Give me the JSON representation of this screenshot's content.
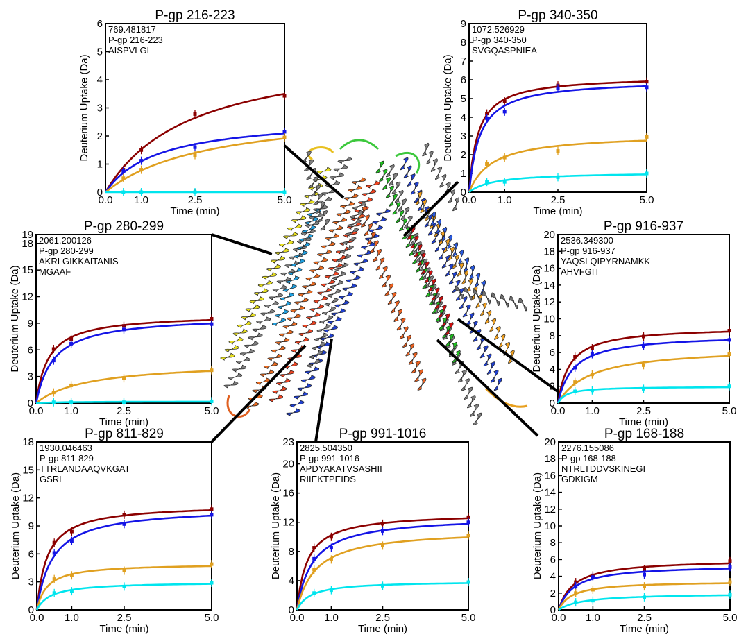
{
  "colors": {
    "red": "#8b0000",
    "blue": "#1414e6",
    "orange": "#e0a020",
    "cyan": "#00e5ee"
  },
  "structure_icon": "protein-ribbon-structure",
  "chart_data": [
    {
      "id": "pgp-216-223",
      "type": "line",
      "title": "P-gp 216-223",
      "annotation": [
        "769.481817",
        "P-gp 216-223",
        "AISPVLGL"
      ],
      "xlabel": "Time (min)",
      "ylabel": "Deuterium Uptake (Da)",
      "xlim": [
        0,
        5
      ],
      "ylim": [
        0,
        6
      ],
      "xticks": [
        "0.0",
        "1.0",
        "2.5",
        "5.0"
      ],
      "yticks": [
        0,
        1,
        2,
        3,
        4,
        5,
        6
      ],
      "x": [
        0.5,
        1.0,
        2.5,
        5.0
      ],
      "series": [
        {
          "color": "red",
          "values": [
            0.8,
            1.5,
            2.78,
            3.43
          ]
        },
        {
          "color": "blue",
          "values": [
            0.75,
            1.12,
            1.6,
            2.15
          ]
        },
        {
          "color": "orange",
          "values": [
            0.5,
            0.8,
            1.32,
            1.95
          ]
        },
        {
          "color": "cyan",
          "values": [
            0.0,
            0.0,
            0.0,
            0.0
          ]
        }
      ]
    },
    {
      "id": "pgp-340-350",
      "type": "line",
      "title": "P-gp 340-350",
      "annotation": [
        "1072.526929",
        "P-gp 340-350",
        "SVGQASPNIEA"
      ],
      "xlabel": "Time (min)",
      "ylabel": "Deuterium Uptake (Da)",
      "xlim": [
        0,
        5
      ],
      "ylim": [
        0,
        9
      ],
      "xticks": [
        "0.0",
        "1.0",
        "2.5",
        "5.0"
      ],
      "yticks": [
        0,
        1,
        2,
        3,
        4,
        5,
        6,
        7,
        8,
        9
      ],
      "x": [
        0.5,
        1.0,
        2.5,
        5.0
      ],
      "series": [
        {
          "color": "red",
          "values": [
            4.2,
            4.85,
            5.7,
            5.9
          ]
        },
        {
          "color": "blue",
          "values": [
            3.95,
            4.3,
            5.55,
            5.6
          ]
        },
        {
          "color": "orange",
          "values": [
            1.5,
            1.85,
            2.2,
            2.95
          ]
        },
        {
          "color": "cyan",
          "values": [
            0.55,
            0.55,
            0.8,
            1.0
          ]
        }
      ]
    },
    {
      "id": "pgp-280-299",
      "type": "line",
      "title": "P-gp 280-299",
      "annotation": [
        "2061.200126",
        "P-gp 280-299",
        "AKRLGIKKAITANIS",
        "MGAAF"
      ],
      "xlabel": "Time (min)",
      "ylabel": "Deuterium Uptake (Da)",
      "xlim": [
        0,
        5
      ],
      "ylim": [
        0,
        19
      ],
      "xticks": [
        "0.0",
        "1.0",
        "2.5",
        "5.0"
      ],
      "yticks": [
        0,
        3,
        6,
        9,
        12,
        15,
        18,
        19
      ],
      "x": [
        0.5,
        1.0,
        2.5,
        5.0
      ],
      "series": [
        {
          "color": "red",
          "values": [
            6.1,
            7.2,
            8.7,
            9.5
          ]
        },
        {
          "color": "blue",
          "values": [
            4.8,
            6.7,
            8.3,
            8.9
          ]
        },
        {
          "color": "orange",
          "values": [
            1.2,
            2.0,
            2.8,
            3.7
          ]
        },
        {
          "color": "cyan",
          "values": [
            0.1,
            0.1,
            0.1,
            0.2
          ]
        }
      ]
    },
    {
      "id": "pgp-916-937",
      "type": "line",
      "title": "P-gp 916-937",
      "annotation": [
        "2536.349300",
        "P-gp 916-937",
        "YAQSLQIPYRNAMKK",
        "AHVFGIT"
      ],
      "xlabel": "Time (min)",
      "ylabel": "Deuterium Uptake (Da)",
      "xlim": [
        0,
        5
      ],
      "ylim": [
        0,
        20
      ],
      "xticks": [
        "0.0",
        "1.0",
        "2.5",
        "5.0"
      ],
      "yticks": [
        0,
        2,
        4,
        6,
        8,
        10,
        12,
        14,
        16,
        18,
        20
      ],
      "x": [
        0.5,
        1.0,
        2.5,
        5.0
      ],
      "series": [
        {
          "color": "red",
          "values": [
            5.5,
            6.5,
            7.9,
            8.6
          ]
        },
        {
          "color": "blue",
          "values": [
            4.2,
            5.8,
            6.8,
            7.5
          ]
        },
        {
          "color": "orange",
          "values": [
            2.5,
            3.4,
            4.5,
            5.8
          ]
        },
        {
          "color": "cyan",
          "values": [
            1.4,
            1.5,
            1.7,
            2.0
          ]
        }
      ]
    },
    {
      "id": "pgp-811-829",
      "type": "line",
      "title": "P-gp 811-829",
      "annotation": [
        "1930.046463",
        "P-gp 811-829",
        "TTRLANDAAQVKGAT",
        "GSRL"
      ],
      "xlabel": "Time (min)",
      "ylabel": "Deuterium Uptake (Da)",
      "xlim": [
        0,
        5
      ],
      "ylim": [
        0,
        18
      ],
      "xticks": [
        "0.0",
        "1.0",
        "2.5",
        "5.0"
      ],
      "yticks": [
        0,
        3,
        6,
        9,
        12,
        15,
        18
      ],
      "x": [
        0.5,
        1.0,
        2.5,
        5.0
      ],
      "series": [
        {
          "color": "red",
          "values": [
            7.2,
            8.4,
            10.2,
            10.8
          ]
        },
        {
          "color": "blue",
          "values": [
            6.1,
            7.4,
            9.2,
            10.2
          ]
        },
        {
          "color": "orange",
          "values": [
            3.3,
            3.7,
            4.2,
            4.9
          ]
        },
        {
          "color": "cyan",
          "values": [
            1.8,
            2.0,
            2.5,
            2.9
          ]
        }
      ]
    },
    {
      "id": "pgp-991-1016",
      "type": "line",
      "title": "P-gp 991-1016",
      "annotation": [
        "2825.504350",
        "P-gp 991-1016",
        "APDYAKATVSASHII",
        "RIIEKTPEIDS"
      ],
      "xlabel": "Time (min)",
      "ylabel": "Deuterium Uptake (Da)",
      "xlim": [
        0,
        5
      ],
      "ylim": [
        0,
        23
      ],
      "xticks": [
        "0.0",
        "1.0",
        "2.5",
        "5.0"
      ],
      "yticks": [
        0,
        4,
        8,
        12,
        16,
        20,
        23
      ],
      "x": [
        0.5,
        1.0,
        2.5,
        5.0
      ],
      "series": [
        {
          "color": "red",
          "values": [
            8.5,
            10.0,
            11.8,
            12.7
          ]
        },
        {
          "color": "blue",
          "values": [
            7.0,
            8.5,
            10.8,
            12.0
          ]
        },
        {
          "color": "orange",
          "values": [
            5.5,
            6.9,
            8.8,
            10.2
          ]
        },
        {
          "color": "cyan",
          "values": [
            2.3,
            2.7,
            3.3,
            3.8
          ]
        }
      ]
    },
    {
      "id": "pgp-168-188",
      "type": "line",
      "title": "P-gp 168-188",
      "annotation": [
        "2276.155086",
        "P-gp 168-188",
        "NTRLTDDVSKINEGI",
        "GDKIGM"
      ],
      "xlabel": "Time (min)",
      "ylabel": "Deuterium Uptake (Da)",
      "xlim": [
        0,
        5
      ],
      "ylim": [
        0,
        20
      ],
      "xticks": [
        "0.0",
        "1.0",
        "2.5",
        "5.0"
      ],
      "yticks": [
        0,
        2,
        4,
        6,
        8,
        10,
        12,
        14,
        16,
        18,
        20
      ],
      "x": [
        0.5,
        1.0,
        2.5,
        5.0
      ],
      "series": [
        {
          "color": "red",
          "values": [
            3.3,
            4.1,
            4.8,
            5.8
          ]
        },
        {
          "color": "blue",
          "values": [
            2.8,
            3.9,
            4.2,
            5.1
          ]
        },
        {
          "color": "orange",
          "values": [
            2.0,
            2.4,
            2.8,
            3.3
          ]
        },
        {
          "color": "cyan",
          "values": [
            0.9,
            1.1,
            1.5,
            1.8
          ]
        }
      ]
    }
  ]
}
